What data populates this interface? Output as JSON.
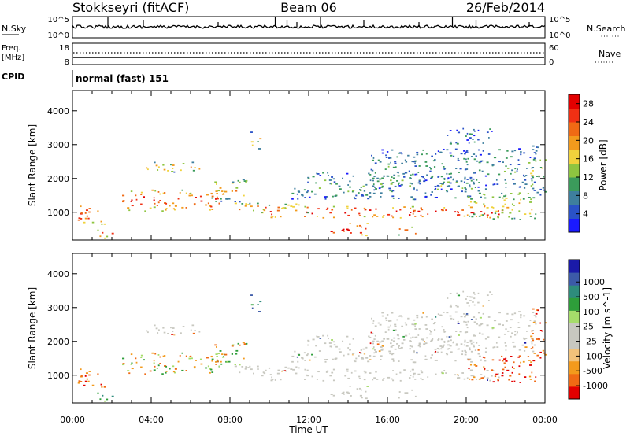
{
  "header": {
    "station": "Stokkseyri (fitACF)",
    "beam": "Beam 06",
    "date": "26/Feb/2014"
  },
  "aux_panels": {
    "nsky_label": "N.Sky",
    "nsky_ticks": [
      "10^5",
      "10^0"
    ],
    "nsearch_label": "N.Search",
    "nsearch_ticks": [
      "10^5",
      "10^0"
    ],
    "freq_label_1": "Freq.",
    "freq_label_2": "[MHz]",
    "freq_ticks": [
      "18",
      "8"
    ],
    "nave_label": "Nave",
    "nave_ticks": [
      "60",
      "0"
    ],
    "cpid_label": "CPID",
    "cpid_value": "normal (fast) 151"
  },
  "colors": {
    "power": [
      "#1a1aff",
      "#2a52c8",
      "#3e7f9e",
      "#3b9b5b",
      "#8ec540",
      "#f0d23c",
      "#f39a1c",
      "#f06a14",
      "#f03014",
      "#e30000"
    ],
    "velocity": [
      "#e30000",
      "#f06a14",
      "#f39a1c",
      "#f2c27a",
      "#c8c8c0",
      "#c8c8c0",
      "#a6dc6a",
      "#2e9e3a",
      "#2e8c7c",
      "#3c5aa8",
      "#1a1aa8"
    ]
  },
  "chart_data": [
    {
      "type": "heatmap",
      "title": "",
      "xlabel": "Time UT",
      "ylabel": "Slant Range [km]",
      "xlim": [
        "00:00",
        "24:00"
      ],
      "ylim": [
        180,
        4600
      ],
      "x_ticks": [
        "00:00",
        "04:00",
        "08:00",
        "12:00",
        "16:00",
        "20:00",
        "00:00"
      ],
      "y_ticks": [
        1000,
        2000,
        3000,
        4000
      ],
      "colorbar_label": "Power [dB]",
      "colorbar_ticks": [
        4,
        8,
        12,
        16,
        20,
        24,
        28
      ],
      "colorbar_range": [
        0,
        30
      ]
    },
    {
      "type": "heatmap",
      "title": "",
      "xlabel": "Time UT",
      "ylabel": "Slant Range [km]",
      "xlim": [
        "00:00",
        "24:00"
      ],
      "ylim": [
        180,
        4600
      ],
      "x_ticks": [
        "00:00",
        "04:00",
        "08:00",
        "12:00",
        "16:00",
        "20:00",
        "00:00"
      ],
      "y_ticks": [
        1000,
        2000,
        3000,
        4000
      ],
      "colorbar_label": "Velocity [m s^-1]",
      "colorbar_ticks": [
        1000,
        500,
        100,
        25,
        -25,
        -100,
        -500,
        -1000
      ]
    }
  ]
}
